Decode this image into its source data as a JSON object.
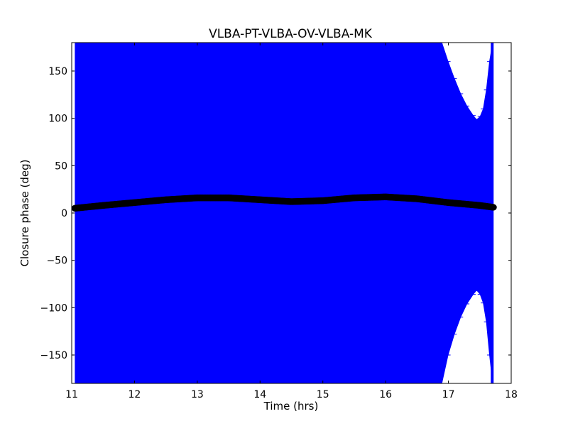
{
  "chart_data": {
    "type": "scatter",
    "title": "VLBA-PT-VLBA-OV-VLBA-MK",
    "xlabel": "Time (hrs)",
    "ylabel": "Closure phase (deg)",
    "xlim": [
      11,
      18
    ],
    "ylim": [
      -180,
      180
    ],
    "xticks": [
      11,
      12,
      13,
      14,
      15,
      16,
      17,
      18
    ],
    "yticks": [
      -150,
      -100,
      -50,
      0,
      50,
      100,
      150
    ],
    "grid": false,
    "legend": "none",
    "x_start": 11.05,
    "x_end": 17.72,
    "series": [
      {
        "style": "errorbars",
        "color": "#0000ff",
        "note_values": "closure phase ± uncertainty; uncertainty reaches ±180 for most times",
        "x": [
          11.05,
          16.8,
          16.9,
          17.0,
          17.1,
          17.2,
          17.3,
          17.4,
          17.45,
          17.5,
          17.55,
          17.6,
          17.65,
          17.7
        ],
        "upper": [
          180,
          180,
          180,
          160,
          142,
          126,
          113,
          103,
          99,
          102,
          110,
          130,
          160,
          180
        ],
        "lower": [
          -180,
          -180,
          -180,
          -150,
          -128,
          -110,
          -96,
          -86,
          -82,
          -86,
          -95,
          -115,
          -150,
          -180
        ]
      },
      {
        "style": "markers",
        "color": "#000000",
        "x": [
          11.05,
          11.5,
          12.0,
          12.5,
          13.0,
          13.5,
          14.0,
          14.5,
          15.0,
          15.5,
          16.0,
          16.5,
          17.0,
          17.5,
          17.72
        ],
        "y": [
          5,
          8,
          11,
          14,
          16,
          16,
          14,
          12,
          13,
          16,
          17,
          15,
          11,
          8,
          6
        ]
      }
    ]
  }
}
